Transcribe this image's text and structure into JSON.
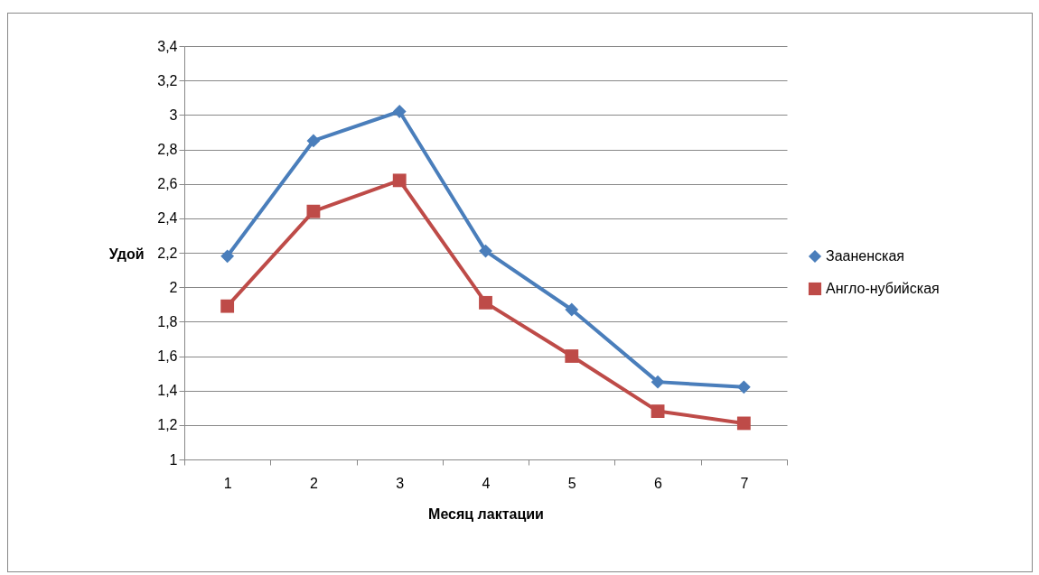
{
  "chart_data": {
    "type": "line",
    "xlabel": "Месяц лактации",
    "ylabel": "Удой",
    "categories": [
      "1",
      "2",
      "3",
      "4",
      "5",
      "6",
      "7"
    ],
    "series": [
      {
        "name": "Зааненская",
        "color": "#4a7ebb",
        "marker": "diamond",
        "values": [
          2.18,
          2.85,
          3.02,
          2.21,
          1.87,
          1.45,
          1.42
        ]
      },
      {
        "name": "Англо-нубийская",
        "color": "#be4b48",
        "marker": "square",
        "values": [
          1.89,
          2.44,
          2.62,
          1.91,
          1.6,
          1.28,
          1.21
        ]
      }
    ],
    "ylim": [
      1,
      3.4
    ],
    "yticks": [
      1,
      {
        "value": 1.2,
        "label": "1,2"
      },
      {
        "value": 1.4,
        "label": "1,4"
      },
      {
        "value": 1.6,
        "label": "1,6"
      },
      {
        "value": 1.8,
        "label": "1,8"
      },
      2,
      {
        "value": 2.2,
        "label": "2,2"
      },
      {
        "value": 2.4,
        "label": "2,4"
      },
      {
        "value": 2.6,
        "label": "2,6"
      },
      {
        "value": 2.8,
        "label": "2,8"
      },
      3,
      {
        "value": 3.2,
        "label": "3,2"
      },
      {
        "value": 3.4,
        "label": "3,4"
      }
    ],
    "grid": "y",
    "legend": "right",
    "line_style": "solid"
  }
}
